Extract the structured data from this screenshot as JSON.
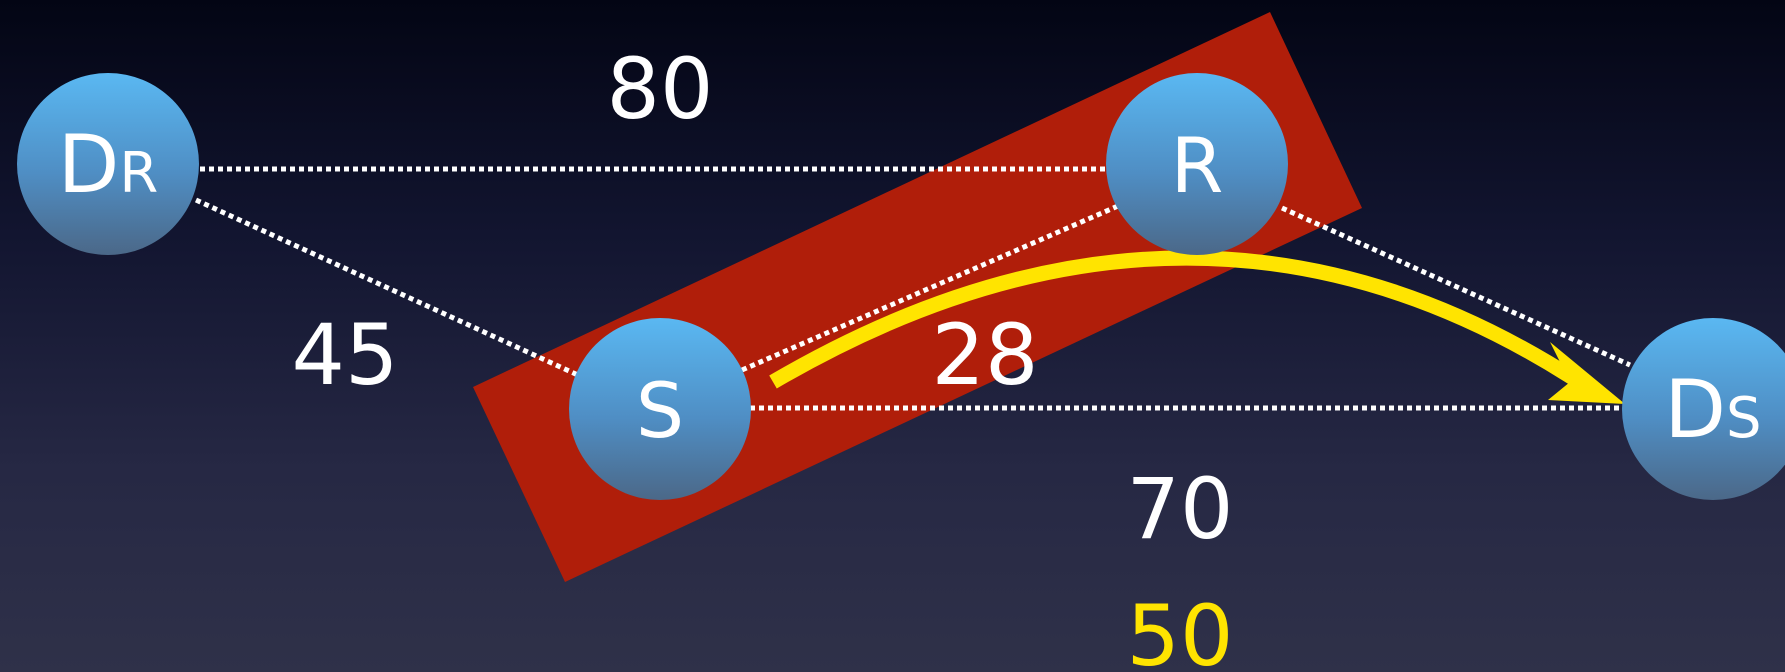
{
  "nodes": [
    {
      "id": "DR",
      "main": "D",
      "sub": "R"
    },
    {
      "id": "R",
      "main": "R",
      "sub": ""
    },
    {
      "id": "S",
      "main": "S",
      "sub": ""
    },
    {
      "id": "DS",
      "main": "D",
      "sub": "S"
    }
  ],
  "edges": [
    {
      "from": "DR",
      "to": "R",
      "weight": "80"
    },
    {
      "from": "DR",
      "to": "S",
      "weight": "45"
    },
    {
      "from": "S",
      "to": "R",
      "weight": "28"
    },
    {
      "from": "S",
      "to": "DS",
      "weight": "70"
    },
    {
      "from": "R",
      "to": "DS",
      "weight": ""
    }
  ],
  "highlighted_path_weight": "50",
  "colors": {
    "node_top": "#5ab4ee",
    "node_bottom": "#4a6a8e",
    "highlight_box": "#b01e0a",
    "path_arrow": "#ffe400",
    "edge": "#ffffff",
    "text": "#ffffff"
  }
}
